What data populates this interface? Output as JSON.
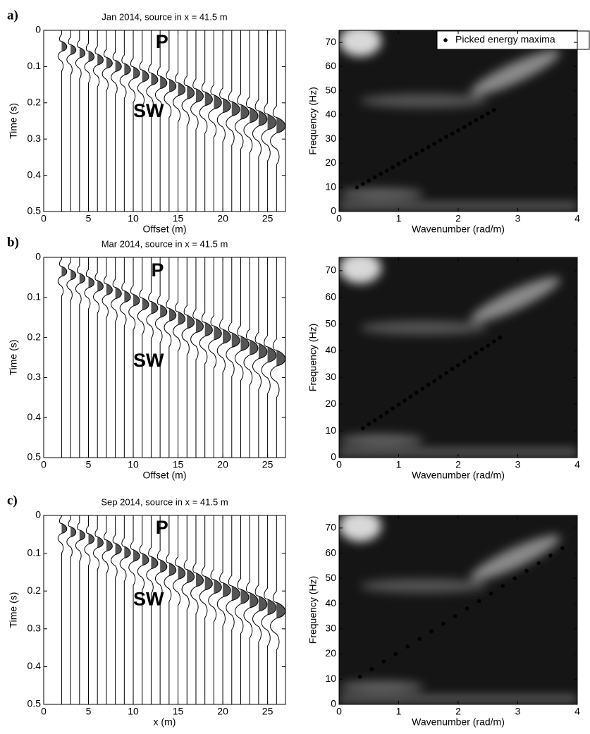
{
  "chart_data": [
    {
      "type": "wiggle",
      "label": "a)",
      "title": "Jan 2014, source in x = 41.5 m",
      "xlabel": "Offset (m)",
      "ylabel": "Time (s)",
      "annotations": [
        "P",
        "SW"
      ],
      "x": [
        2,
        3,
        4,
        5,
        6,
        7,
        8,
        9,
        10,
        11,
        12,
        13,
        14,
        15,
        16,
        17,
        18,
        19,
        20,
        21,
        22,
        23,
        24,
        25,
        26
      ],
      "values": [
        0.05,
        0.059,
        0.068,
        0.078,
        0.087,
        0.096,
        0.105,
        0.114,
        0.124,
        0.133,
        0.142,
        0.151,
        0.16,
        0.17,
        0.179,
        0.188,
        0.197,
        0.206,
        0.216,
        0.225,
        0.234,
        0.243,
        0.252,
        0.262,
        0.271
      ],
      "xlim": [
        0,
        27
      ],
      "ylim": [
        0,
        0.5
      ],
      "y_inverted": true,
      "xticks": [
        0,
        5,
        10,
        15,
        20,
        25
      ],
      "yticks": [
        0,
        0.1,
        0.2,
        0.3,
        0.4,
        0.5
      ],
      "color": "#000000"
    },
    {
      "type": "dispersion",
      "xlabel": "Wavenumber (rad/m)",
      "ylabel": "Frequency (Hz)",
      "legend": "upper right",
      "x": [
        0.3,
        0.4,
        0.5,
        0.6,
        0.7,
        0.8,
        0.9,
        1.0,
        1.1,
        1.2,
        1.3,
        1.4,
        1.5,
        1.6,
        1.7,
        1.8,
        1.9,
        2.0,
        2.1,
        2.2,
        2.3,
        2.4,
        2.5,
        2.6
      ],
      "series": [
        {
          "name": "Picked energy maxima",
          "color": "#000000",
          "values": [
            10,
            11.4,
            12.8,
            14.2,
            15.6,
            16.9,
            18.3,
            19.7,
            21.1,
            22.5,
            23.9,
            25.3,
            26.7,
            28.1,
            29.5,
            30.9,
            32.2,
            33.6,
            35,
            36.4,
            37.8,
            39.2,
            40.6,
            42
          ]
        }
      ],
      "xlim": [
        0,
        4
      ],
      "ylim": [
        0,
        75
      ],
      "xticks": [
        0,
        1,
        2,
        3,
        4
      ],
      "yticks": [
        0,
        10,
        20,
        30,
        40,
        50,
        60,
        70
      ]
    },
    {
      "type": "wiggle",
      "label": "b)",
      "title": "Mar 2014, source in x = 41.5 m",
      "xlabel": "Offset (m)",
      "ylabel": "Time (s)",
      "annotations": [
        "P",
        "SW"
      ],
      "x": [
        2,
        3,
        4,
        5,
        6,
        7,
        8,
        9,
        10,
        11,
        12,
        13,
        14,
        15,
        16,
        17,
        18,
        19,
        20,
        21,
        22,
        23,
        24,
        25,
        26
      ],
      "values": [
        0.04,
        0.049,
        0.058,
        0.068,
        0.077,
        0.086,
        0.095,
        0.104,
        0.113,
        0.123,
        0.132,
        0.141,
        0.15,
        0.159,
        0.168,
        0.178,
        0.187,
        0.196,
        0.205,
        0.214,
        0.223,
        0.233,
        0.242,
        0.251,
        0.26
      ],
      "xlim": [
        0,
        27
      ],
      "ylim": [
        0,
        0.5
      ],
      "y_inverted": true,
      "xticks": [
        0,
        5,
        10,
        15,
        20,
        25
      ],
      "yticks": [
        0,
        0.1,
        0.2,
        0.3,
        0.4,
        0.5
      ],
      "color": "#000000"
    },
    {
      "type": "dispersion",
      "xlabel": "Wavenumber (rad/m)",
      "ylabel": "Frequency (Hz)",
      "x": [
        0.4,
        0.5,
        0.6,
        0.7,
        0.8,
        0.9,
        1.0,
        1.1,
        1.2,
        1.3,
        1.4,
        1.5,
        1.6,
        1.7,
        1.8,
        1.9,
        2.0,
        2.1,
        2.2,
        2.3,
        2.4,
        2.5,
        2.6,
        2.7
      ],
      "series": [
        {
          "color": "#000000",
          "values": [
            11,
            12.5,
            14,
            15.4,
            16.9,
            18.4,
            19.9,
            21.3,
            22.8,
            24.3,
            25.8,
            27.3,
            28.7,
            30.2,
            31.7,
            33.2,
            34.6,
            36.1,
            37.6,
            39.1,
            40.6,
            42,
            43.5,
            45
          ]
        }
      ],
      "xlim": [
        0,
        4
      ],
      "ylim": [
        0,
        75
      ],
      "xticks": [
        0,
        1,
        2,
        3,
        4
      ],
      "yticks": [
        0,
        10,
        20,
        30,
        40,
        50,
        60,
        70
      ]
    },
    {
      "type": "wiggle",
      "label": "c)",
      "title": "Sep 2014, source in x = 41.5 m",
      "xlabel": "x (m)",
      "ylabel": "Time (s)",
      "annotations": [
        "P",
        "SW"
      ],
      "x": [
        2,
        3,
        4,
        5,
        6,
        7,
        8,
        9,
        10,
        11,
        12,
        13,
        14,
        15,
        16,
        17,
        18,
        19,
        20,
        21,
        22,
        23,
        24,
        25,
        26
      ],
      "values": [
        0.04,
        0.049,
        0.058,
        0.068,
        0.077,
        0.086,
        0.095,
        0.104,
        0.113,
        0.123,
        0.132,
        0.141,
        0.15,
        0.159,
        0.168,
        0.178,
        0.187,
        0.196,
        0.205,
        0.214,
        0.223,
        0.233,
        0.242,
        0.251,
        0.26
      ],
      "xlim": [
        0,
        27
      ],
      "ylim": [
        0,
        0.5
      ],
      "y_inverted": true,
      "xticks": [
        0,
        5,
        10,
        15,
        20,
        25
      ],
      "yticks": [
        0,
        0.1,
        0.2,
        0.3,
        0.4,
        0.5
      ],
      "color": "#000000"
    },
    {
      "type": "dispersion",
      "xlabel": "Wavenumber (rad/m)",
      "ylabel": "Frequency (Hz)",
      "x": [
        0.35,
        0.55,
        0.75,
        0.95,
        1.15,
        1.35,
        1.55,
        1.75,
        1.95,
        2.15,
        2.35,
        2.55,
        2.75,
        2.95,
        3.15,
        3.35,
        3.55,
        3.75
      ],
      "series": [
        {
          "color": "#000000",
          "values": [
            11,
            14,
            17,
            20,
            23,
            26,
            29,
            32,
            35,
            38,
            41,
            44,
            47,
            50,
            53,
            56,
            59,
            62
          ]
        }
      ],
      "xlim": [
        0,
        4
      ],
      "ylim": [
        0,
        75
      ],
      "xticks": [
        0,
        1,
        2,
        3,
        4
      ],
      "yticks": [
        0,
        10,
        20,
        30,
        40,
        50,
        60,
        70
      ]
    }
  ]
}
